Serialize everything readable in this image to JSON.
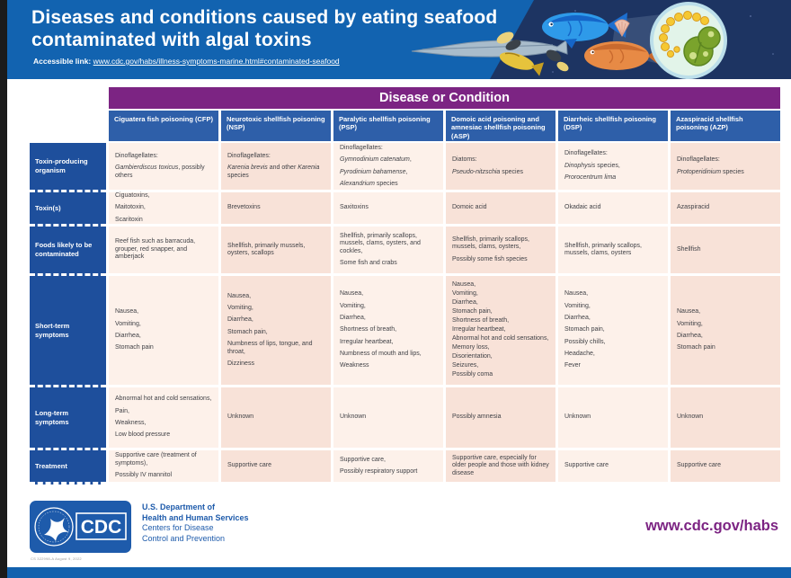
{
  "header": {
    "title_line1": "Diseases and conditions caused by eating seafood",
    "title_line2": "contaminated with algal toxins",
    "accessible_link_label": "Accessible link:",
    "accessible_link_url": "www.cdc.gov/habs/illness-symptoms-marine.html#contaminated-seafood"
  },
  "table": {
    "banner": "Disease or Condition",
    "columns": [
      "Ciguatera fish poisoning (CFP)",
      "Neurotoxic shellfish poisoning (NSP)",
      "Paralytic shellfish poisoning (PSP)",
      "Domoic acid poisoning and amnesiac shellfish poisoning (ASP)",
      "Diarrheic shellfish poisoning (DSP)",
      "Azaspiracid shellfish poisoning (AZP)"
    ],
    "rows": [
      {
        "header": "Toxin-producing organism",
        "cells": [
          [
            "Dinoflagellates:",
            "*Gambierdiscus toxicus*, possibly others"
          ],
          [
            "Dinoflagellates:",
            "*Karenia brevis* and other *Karenia* species"
          ],
          [
            "Dinoflagellates:",
            "*Gymnodinium catenatum*,",
            "*Pyrodinium bahamense*,",
            "*Alexandrium* species"
          ],
          [
            "Diatoms:",
            "*Pseudo-nitzschia* species"
          ],
          [
            "Dinoflagellates:",
            "*Dinophysis* species,",
            "*Prorocentrum lima*"
          ],
          [
            "Dinoflagellates:",
            "*Protoperidinium* species"
          ]
        ]
      },
      {
        "header": "Toxin(s)",
        "cells": [
          [
            "Ciguatoxins,",
            "Maitotoxin,",
            "Scaritoxin"
          ],
          [
            "Brevetoxins"
          ],
          [
            "Saxitoxins"
          ],
          [
            "Domoic acid"
          ],
          [
            "Okadaic acid"
          ],
          [
            "Azaspiracid"
          ]
        ]
      },
      {
        "header": "Foods likely to be contaminated",
        "cells": [
          [
            "Reef fish such as barracuda, grouper, red snapper, and amberjack"
          ],
          [
            "Shellfish, primarily mussels, oysters, scallops"
          ],
          [
            "Shellfish, primarily scallops, mussels, clams, oysters, and cockles,",
            "Some fish and crabs"
          ],
          [
            "Shellfish, primarily scallops, mussels, clams, oysters,",
            "Possibly some fish species"
          ],
          [
            "Shellfish, primarily scallops, mussels, clams, oysters"
          ],
          [
            "Shellfish"
          ]
        ]
      },
      {
        "header": "Short-term symptoms",
        "cells": [
          [
            "Nausea,",
            "Vomiting,",
            "Diarrhea,",
            "Stomach pain"
          ],
          [
            "Nausea,",
            "Vomiting,",
            "Diarrhea,",
            "Stomach pain,",
            "Numbness of lips, tongue, and throat,",
            "Dizziness"
          ],
          [
            "Nausea,",
            "Vomiting,",
            "Diarrhea,",
            "Shortness of breath,",
            "Irregular heartbeat,",
            "Numbness of mouth and lips,",
            "Weakness"
          ],
          [
            "Nausea,",
            "Vomiting,",
            "Diarrhea,",
            "Stomach pain,",
            "Shortness of breath,",
            "Irregular heartbeat,",
            "Abnormal hot and cold sensations,",
            "Memory loss,",
            "Disorientation,",
            "Seizures,",
            "Possibly coma"
          ],
          [
            "Nausea,",
            "Vomiting,",
            "Diarrhea,",
            "Stomach pain,",
            "Possibly chills,",
            "Headache,",
            "Fever"
          ],
          [
            "Nausea,",
            "Vomiting,",
            "Diarrhea,",
            "Stomach pain"
          ]
        ]
      },
      {
        "header": "Long-term symptoms",
        "cells": [
          [
            "Abnormal hot and cold sensations,",
            "Pain,",
            "Weakness,",
            "Low blood pressure"
          ],
          [
            "Unknown"
          ],
          [
            "Unknown"
          ],
          [
            "Possibly amnesia"
          ],
          [
            "Unknown"
          ],
          [
            "Unknown"
          ]
        ]
      },
      {
        "header": "Treatment",
        "cells": [
          [
            "Supportive care (treatment of symptoms),",
            "Possibly IV mannitol"
          ],
          [
            "Supportive care"
          ],
          [
            "Supportive care,",
            "Possibly respiratory support"
          ],
          [
            "Supportive care, especially for older people and those with kidney disease"
          ],
          [
            "Supportive care"
          ],
          [
            "Supportive care"
          ]
        ]
      }
    ]
  },
  "footer": {
    "cdc_logo_text": "CDC",
    "dept_line1": "U.S. Department of",
    "dept_line2": "Health and Human Services",
    "dept_line3": "Centers for Disease",
    "dept_line4": "Control and Prevention",
    "doc_number": "CS 322998-A    August 9, 2022",
    "website": "www.cdc.gov/habs"
  },
  "colors": {
    "header_blue": "#1263b0",
    "illustration_navy": "#1d3462",
    "banner_purple": "#7c2483",
    "column_header_blue": "#2e5fa9",
    "row_header_blue": "#1e4f9c",
    "cell_light": "#fdf1ea",
    "cell_dark": "#f8e2d8",
    "cdc_blue": "#1e5bab",
    "bottom_bar_blue": "#1261ae"
  }
}
